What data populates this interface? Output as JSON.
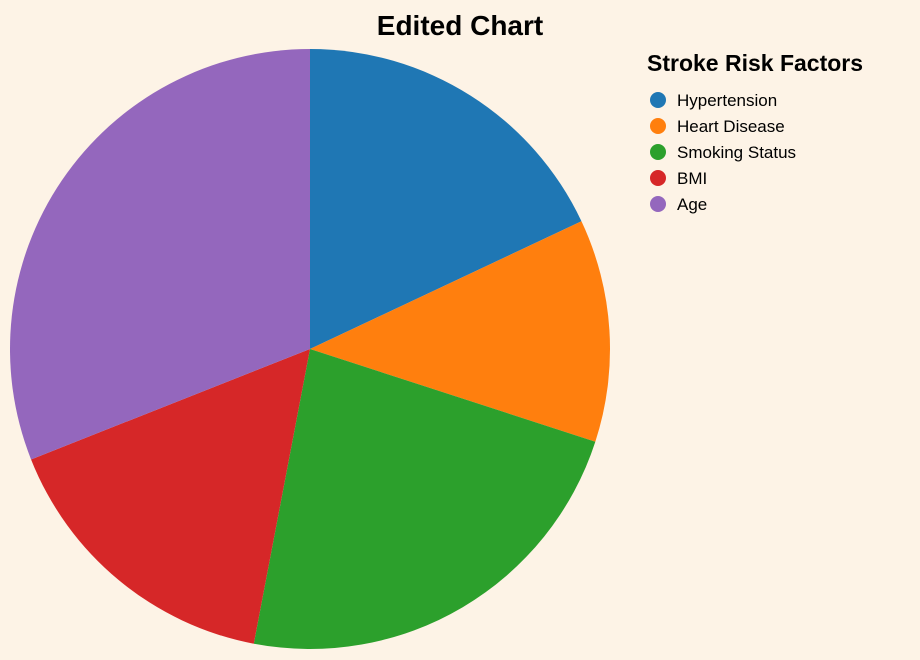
{
  "chart_data": {
    "type": "pie",
    "title": "Edited Chart",
    "legend_title": "Stroke Risk Factors",
    "legend_position": "top-right",
    "categories": [
      "Hypertension",
      "Heart Disease",
      "Smoking Status",
      "BMI",
      "Age"
    ],
    "values": [
      18,
      12,
      23,
      16,
      31
    ],
    "colors": [
      "#1f77b4",
      "#ff7f0e",
      "#2ca02c",
      "#d62728",
      "#9467bd"
    ]
  }
}
